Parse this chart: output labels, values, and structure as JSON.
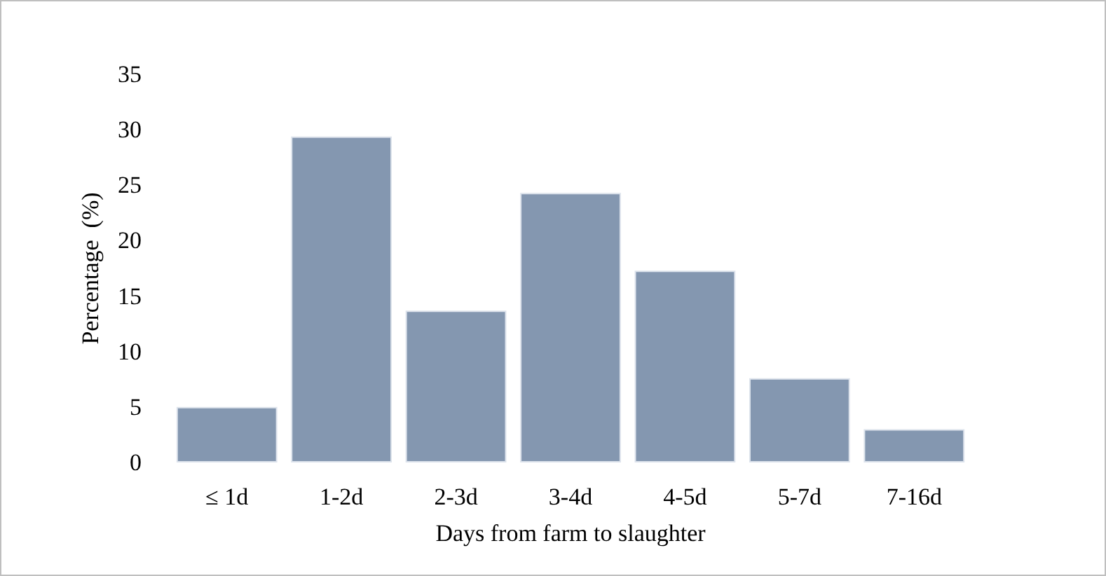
{
  "chart_data": {
    "type": "bar",
    "xlabel": "Days from farm to slaughter",
    "ylabel": "Percentage  (%)",
    "categories": [
      "≤ 1d",
      "1-2d",
      "2-3d",
      "3-4d",
      "4-5d",
      "5-7d",
      "7-16d"
    ],
    "values": [
      5.0,
      29.4,
      13.7,
      24.3,
      17.3,
      7.6,
      3.0
    ],
    "color": "#8497b0",
    "ylim": [
      0,
      35
    ],
    "yticks": [
      0,
      5,
      10,
      15,
      20,
      25,
      30,
      35
    ],
    "grid": false
  }
}
